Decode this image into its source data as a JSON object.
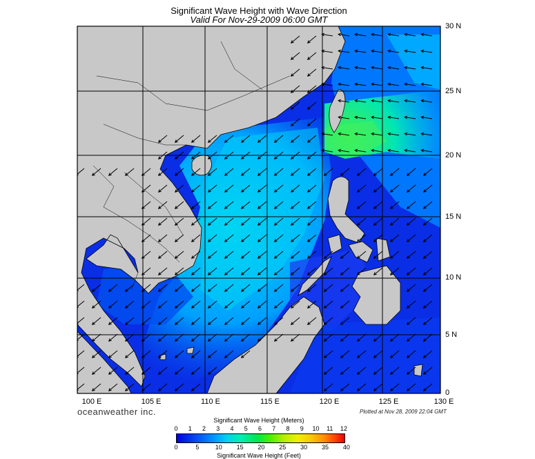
{
  "title": "Significant Wave Height with Wave Direction",
  "subtitle": "Valid For Nov-29-2009 06:00 GMT",
  "lat_labels": [
    "30 N",
    "25 N",
    "20 N",
    "15 N",
    "10 N",
    "5 N",
    "0"
  ],
  "lon_labels": [
    "100 E",
    "105 E",
    "110 E",
    "115 E",
    "120 E",
    "125 E",
    "130 E"
  ],
  "branding": "oceanweather inc.",
  "plotted": "Plotted at Nov 28, 2009 22:04 GMT",
  "legend": {
    "meters_title": "Significant Wave Height (Meters)",
    "meters_ticks": [
      "0",
      "1",
      "2",
      "3",
      "4",
      "5",
      "6",
      "7",
      "8",
      "9",
      "10",
      "11",
      "12"
    ],
    "feet_title": "Significant Wave Height (Feet)",
    "feet_ticks": [
      "0",
      "5",
      "10",
      "15",
      "20",
      "25",
      "30",
      "35",
      "40"
    ]
  },
  "colors": {
    "land": "#c8c8c8",
    "sea_low": "#0a1ee6",
    "sea_mid": "#0096ff",
    "sea_high": "#00e6aa",
    "peak": "#32f050"
  }
}
